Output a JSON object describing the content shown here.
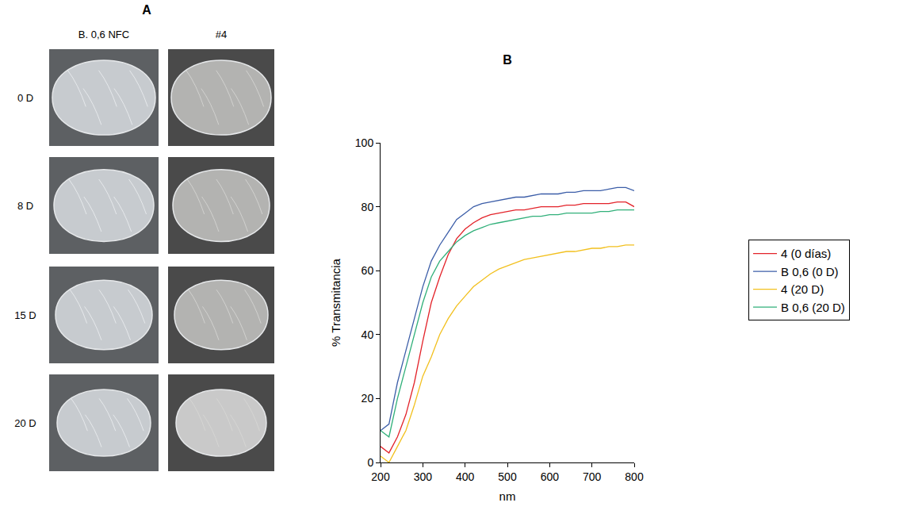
{
  "panel_a": {
    "title": "A",
    "columns": [
      "B. 0,6 NFC",
      "#4"
    ],
    "rows": [
      "0 D",
      "8 D",
      "15 D",
      "20 D"
    ]
  },
  "chart_data": {
    "type": "line",
    "title": "B",
    "x_label": "nm",
    "y_label": "% Transmitancia",
    "x": [
      200,
      220,
      240,
      260,
      280,
      300,
      320,
      340,
      360,
      380,
      400,
      420,
      440,
      460,
      480,
      500,
      520,
      540,
      560,
      580,
      600,
      620,
      640,
      660,
      680,
      700,
      720,
      740,
      760,
      780,
      800
    ],
    "series": [
      {
        "name": "4 (0 días)",
        "color": "#e3232a",
        "values": [
          5,
          3,
          8,
          15,
          25,
          38,
          50,
          58,
          65,
          70,
          73,
          75,
          76.5,
          77.5,
          78,
          78.5,
          79,
          79,
          79.5,
          80,
          80,
          80,
          80.5,
          80.5,
          81,
          81,
          81,
          81,
          81.5,
          81.5,
          80
        ]
      },
      {
        "name": "B 0,6 (0 D)",
        "color": "#3c5ea8",
        "values": [
          10,
          12,
          25,
          35,
          45,
          55,
          63,
          68,
          72,
          76,
          78,
          80,
          81,
          81.5,
          82,
          82.5,
          83,
          83,
          83.5,
          84,
          84,
          84,
          84.5,
          84.5,
          85,
          85,
          85,
          85.5,
          86,
          86,
          85
        ]
      },
      {
        "name": "4 (20 D)",
        "color": "#f2c01e",
        "values": [
          2,
          0,
          5,
          10,
          18,
          27,
          33,
          40,
          45,
          49,
          52,
          55,
          57,
          59,
          60.5,
          61.5,
          62.5,
          63.5,
          64,
          64.5,
          65,
          65.5,
          66,
          66,
          66.5,
          67,
          67,
          67.5,
          67.5,
          68,
          68
        ]
      },
      {
        "name": "B 0,6 (20 D)",
        "color": "#31b07a",
        "values": [
          10,
          8,
          20,
          30,
          40,
          50,
          58,
          63,
          66,
          69,
          71,
          72.5,
          73.5,
          74.5,
          75,
          75.5,
          76,
          76.5,
          77,
          77,
          77.5,
          77.5,
          78,
          78,
          78,
          78,
          78.5,
          78.5,
          79,
          79,
          79
        ]
      }
    ],
    "xlim": [
      200,
      800
    ],
    "xticks": [
      200,
      300,
      400,
      500,
      600,
      700,
      800
    ],
    "ylim": [
      0,
      100
    ],
    "yticks": [
      0,
      20,
      40,
      60,
      80,
      100
    ],
    "grid": false,
    "legend": "right"
  }
}
